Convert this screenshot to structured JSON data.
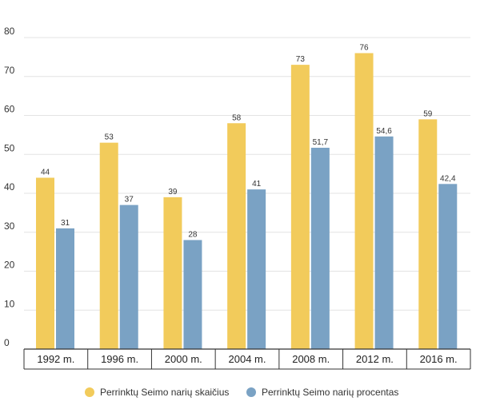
{
  "chart_data": {
    "type": "bar",
    "title": "",
    "xlabel": "",
    "ylabel": "",
    "categories": [
      "1992 m.",
      "1996 m.",
      "2000 m.",
      "2004 m.",
      "2008 m.",
      "2012 m.",
      "2016 m."
    ],
    "series": [
      {
        "name": "Perrinktų Seimo narių skaičius",
        "color": "#f2cb5b",
        "values": [
          44,
          53,
          39,
          58,
          73,
          76,
          59
        ],
        "labels": [
          "44",
          "53",
          "39",
          "58",
          "73",
          "76",
          "59"
        ]
      },
      {
        "name": "Perrinktų Seimo narių procentas",
        "color": "#7aa2c4",
        "values": [
          31,
          37,
          28,
          41,
          51.7,
          54.6,
          42.4
        ],
        "labels": [
          "31",
          "37",
          "28",
          "41",
          "51,7",
          "54,6",
          "42,4"
        ]
      }
    ],
    "ylim": [
      0,
      80
    ],
    "yticks": [
      "0",
      "10",
      "20",
      "30",
      "40",
      "50",
      "60",
      "70",
      "80"
    ],
    "grid": true,
    "legend": "bottom"
  }
}
